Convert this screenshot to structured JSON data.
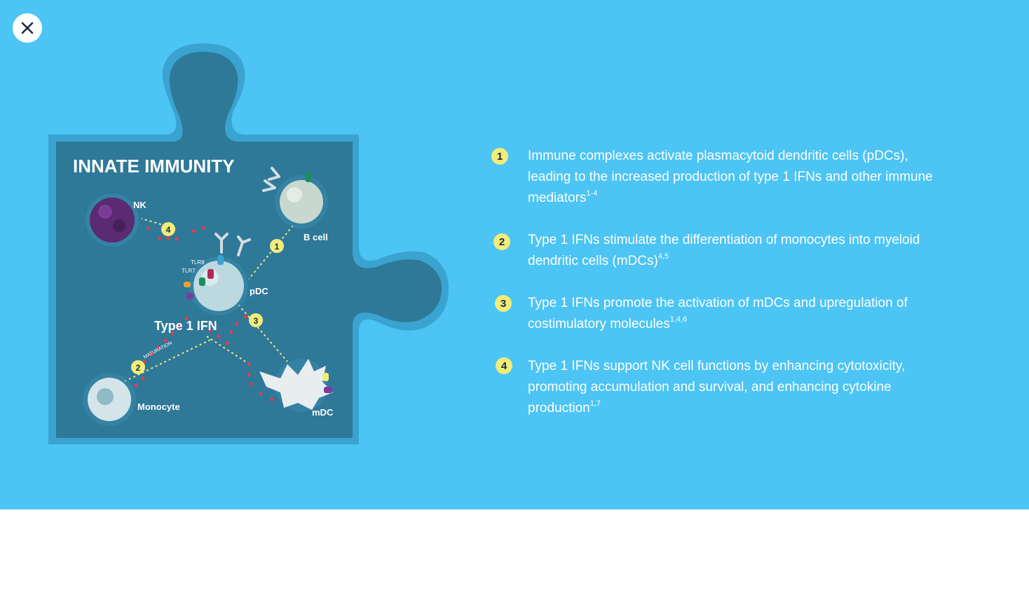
{
  "colors": {
    "background": "#4cc4f4",
    "puzzle_fill": "#2e7898",
    "badge": "#f2ec7a",
    "text": "#ffffff"
  },
  "close_button": {
    "icon": "close-icon"
  },
  "diagram": {
    "title": "INNATE IMMUNITY",
    "center_label": "Type 1 IFN",
    "maturation_label": "MATURATION",
    "cells": {
      "nk": "NK",
      "b_cell": "B cell",
      "pdc": "pDC",
      "monocyte": "Monocyte",
      "mdc": "mDC"
    },
    "receptors": {
      "tlr9": "TLR9",
      "tlr7": "TLR7"
    },
    "badges": [
      "1",
      "2",
      "3",
      "4"
    ]
  },
  "steps": [
    {
      "number": "1",
      "text": "Immune complexes activate plasmacytoid dendritic cells (pDCs), leading to the increased production of type 1 IFNs and other immune mediators",
      "ref": "1-4"
    },
    {
      "number": "2",
      "text": "Type 1 IFNs stimulate the differentiation of monocytes into myeloid dendritic cells (mDCs)",
      "ref": "4,5"
    },
    {
      "number": "3",
      "text": "Type 1 IFNs promote the activation of mDCs and upregulation of costimulatory molecules",
      "ref": "1,4,6"
    },
    {
      "number": "4",
      "text": "Type 1 IFNs support NK cell functions by enhancing cytotoxicity, promoting accumulation and survival, and enhancing cytokine production",
      "ref": "1,7"
    }
  ]
}
